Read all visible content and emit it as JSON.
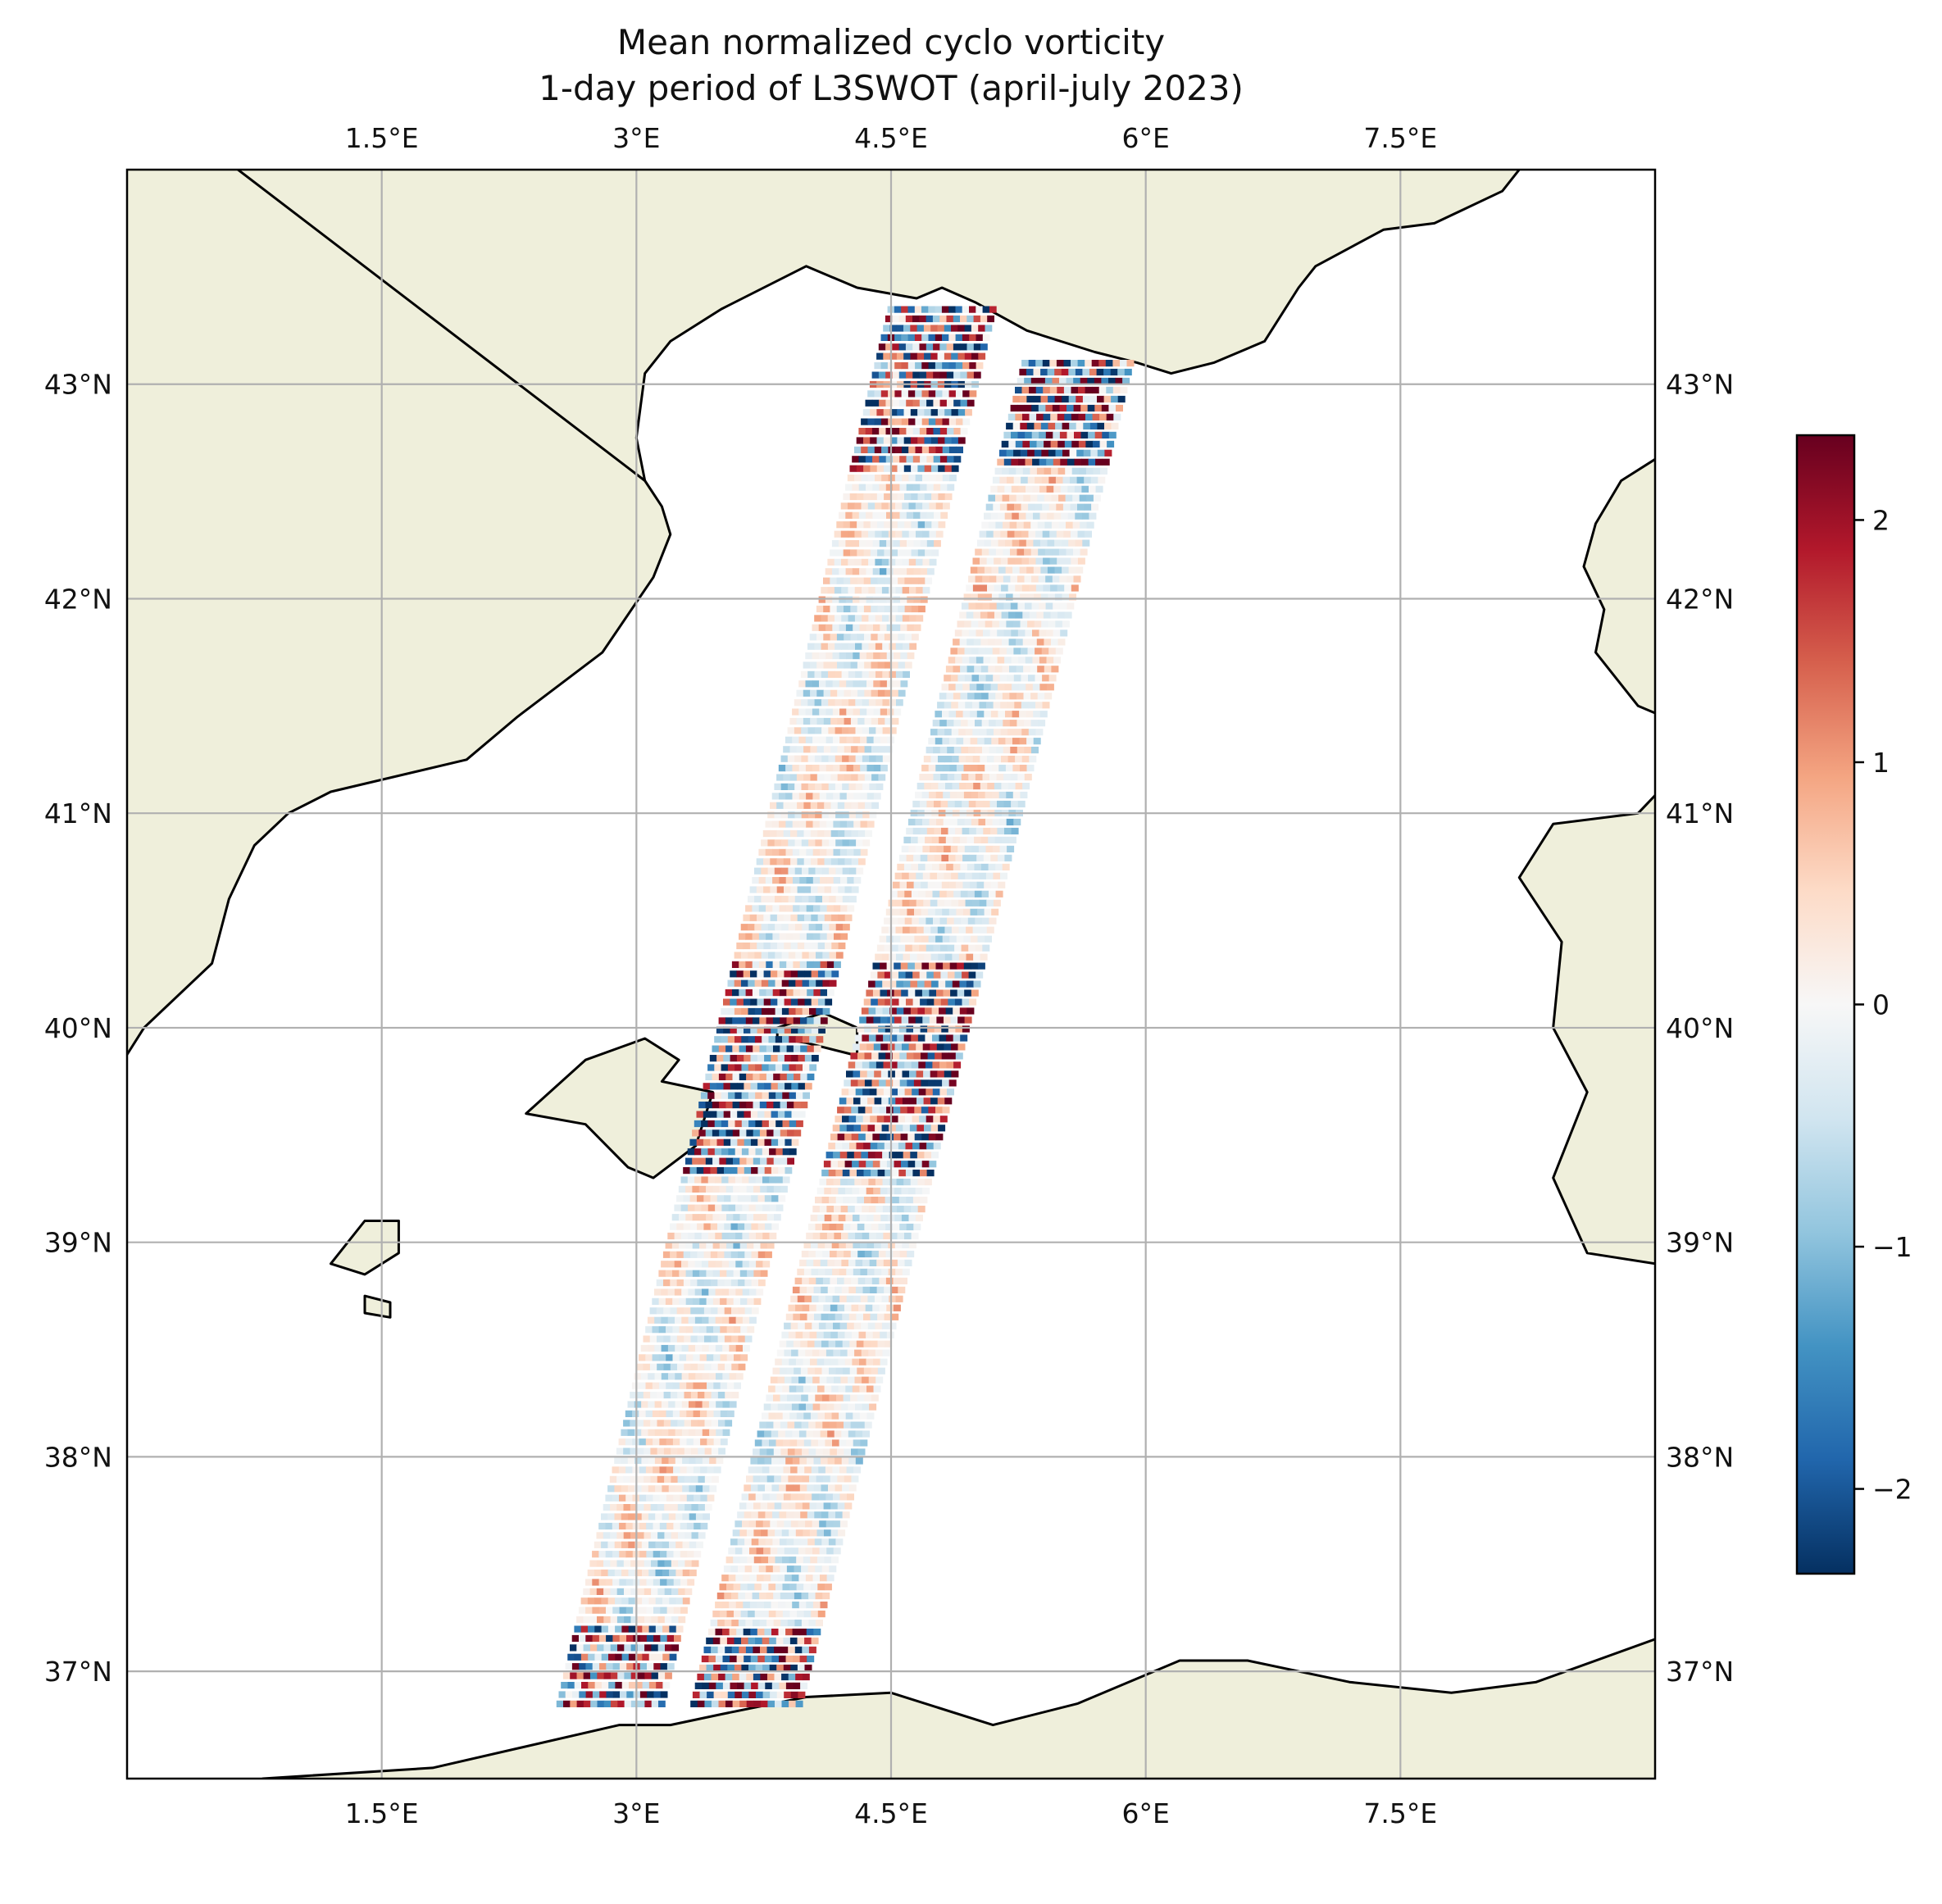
{
  "chart_data": {
    "type": "heatmap",
    "title": "Mean normalized cyclo vorticity",
    "subtitle": "1-day period of L3SWOT (april-july 2023)",
    "xlabel": "",
    "ylabel": "",
    "xlim": [
      0.0,
      9.0
    ],
    "ylim": [
      36.5,
      44.0
    ],
    "x_ticks": [
      1.5,
      3.0,
      4.5,
      6.0,
      7.5
    ],
    "x_tick_labels": [
      "1.5°E",
      "3°E",
      "4.5°E",
      "6°E",
      "7.5°E"
    ],
    "y_ticks": [
      37,
      38,
      39,
      40,
      41,
      42,
      43
    ],
    "y_tick_labels": [
      "37°N",
      "38°N",
      "39°N",
      "40°N",
      "41°N",
      "42°N",
      "43°N"
    ],
    "grid": true,
    "swaths": [
      {
        "lon_start": 2.85,
        "lat_start": 36.85,
        "lon_end": 4.8,
        "lat_end": 43.35,
        "width_deg": 0.6
      },
      {
        "lon_start": 3.65,
        "lat_start": 36.85,
        "lon_end": 5.6,
        "lat_end": 43.1,
        "width_deg": 0.62
      }
    ],
    "colorbar": {
      "cmap": "RdBu_r",
      "vmin": -2.35,
      "vmax": 2.35,
      "ticks": [
        -2,
        -1,
        0,
        1,
        2
      ],
      "tick_labels": [
        "−2",
        "−1",
        "0",
        "1",
        "2"
      ],
      "colors": [
        "#053061",
        "#2166ac",
        "#4393c3",
        "#92c5de",
        "#d1e5f0",
        "#f7f7f7",
        "#fddbc7",
        "#f4a582",
        "#d6604d",
        "#b2182b",
        "#67001f"
      ]
    },
    "land_color": "#efefdb",
    "coast_color": "#000000",
    "grid_color": "#b0b0b0"
  }
}
